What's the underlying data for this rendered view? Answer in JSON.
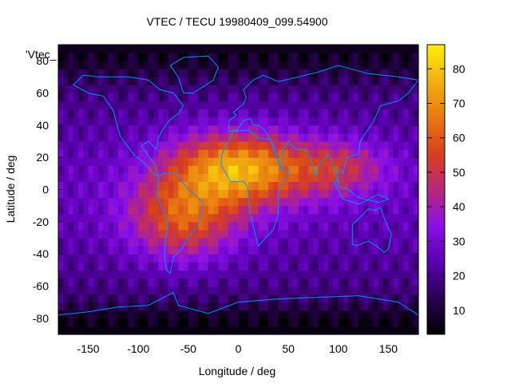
{
  "chart_data": {
    "type": "heatmap",
    "title": "VTEC / TECU 19980409_099.54900",
    "xlabel": "Longitude / deg",
    "ylabel": "Latitude / deg",
    "key_label": "'Vtec_",
    "xlim": [
      -180,
      180
    ],
    "ylim": [
      -90,
      90
    ],
    "x_ticks": [
      "-150",
      "-100",
      "-50",
      "0",
      "50",
      "100",
      "150"
    ],
    "y_ticks": [
      "80",
      "60",
      "40",
      "20",
      "0",
      "-20",
      "-40",
      "-60",
      "-80"
    ],
    "colorbar": {
      "min": 3,
      "max": 87,
      "ticks": [
        "10",
        "20",
        "30",
        "40",
        "50",
        "60",
        "70",
        "80"
      ]
    },
    "colormap": [
      "#000000",
      "#2a0052",
      "#5a00b0",
      "#8a10e8",
      "#b82878",
      "#d8401c",
      "#e87a10",
      "#f2b010",
      "#fff000"
    ],
    "coastline_color": "#0096ff",
    "grid": false
  }
}
